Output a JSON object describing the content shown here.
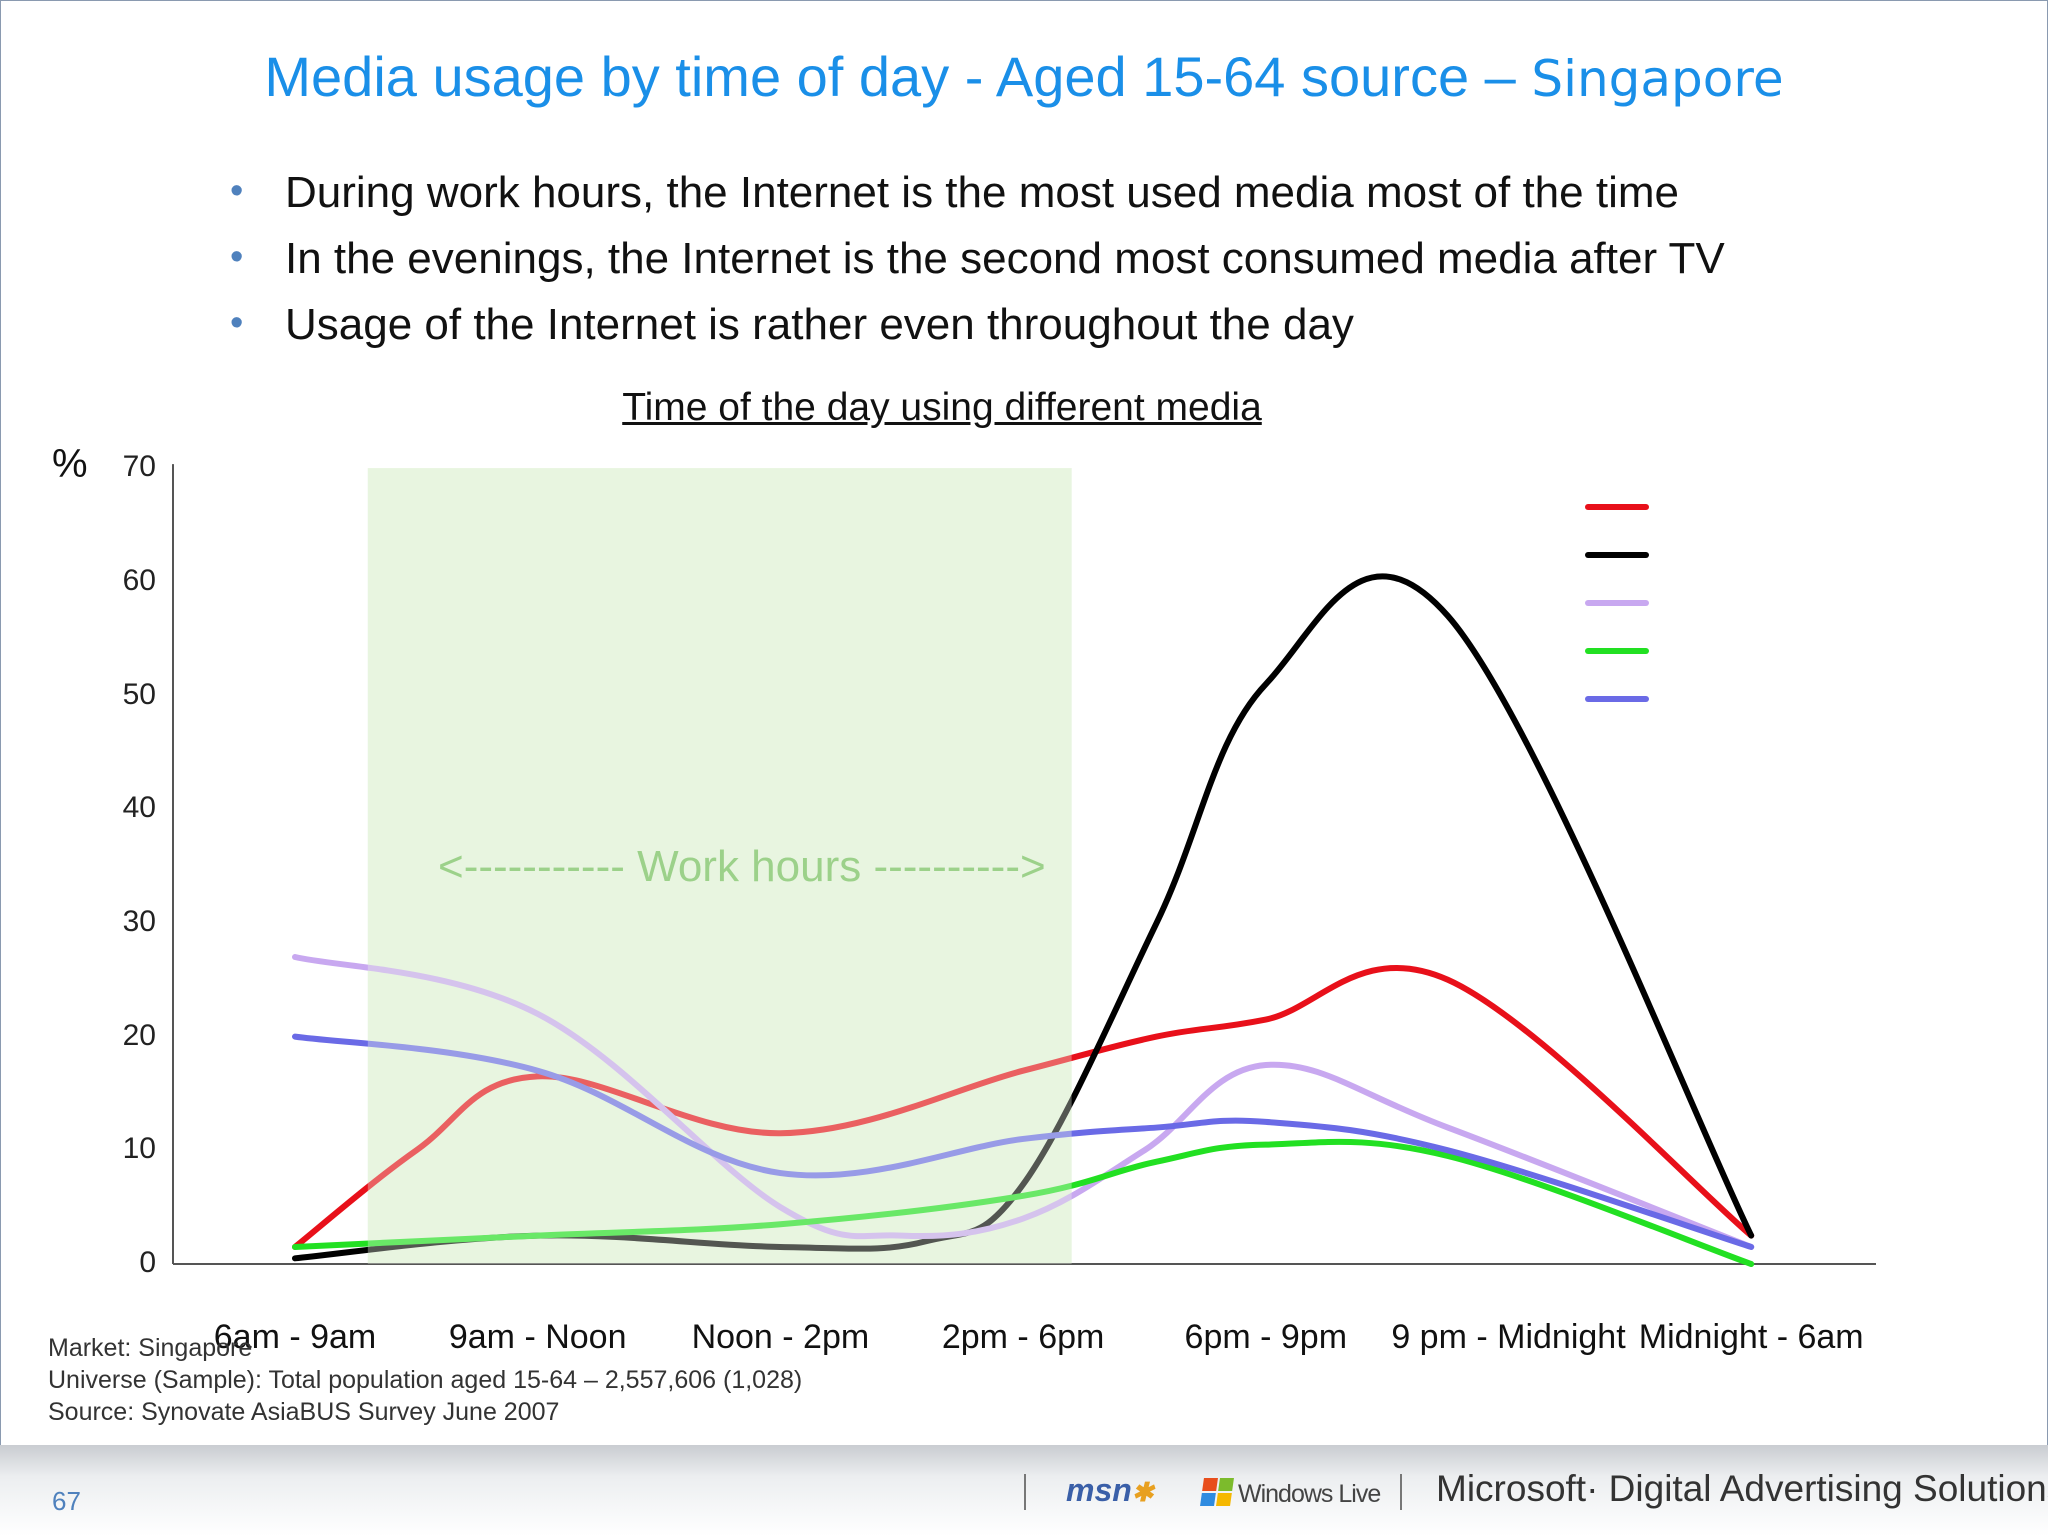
{
  "title": {
    "main": "Media usage by time of day - Aged 15-64 source – ",
    "sub": "Singapore"
  },
  "bullets": [
    "During work hours, the Internet is the most used media most of the time",
    "In the evenings, the Internet is the second most consumed media after TV",
    "Usage of the Internet is rather even throughout the day"
  ],
  "chart_data": {
    "type": "line",
    "title": "Time of the day using different media",
    "ylabel": "%",
    "ylim": [
      0,
      70
    ],
    "yticks": [
      0,
      10,
      20,
      30,
      40,
      50,
      60,
      70
    ],
    "categories": [
      "6am - 9am",
      "9am - Noon",
      "Noon - 2pm",
      "2pm - 6pm",
      "6pm - 9pm",
      "9 pm - Midnight",
      "Midnight - 6am"
    ],
    "highlight": {
      "label": "<----------- Work hours ---------->",
      "range": [
        "9am - Noon",
        "2pm - 6pm"
      ],
      "color": "#d4edc4"
    },
    "series": [
      {
        "color": "#e8101a",
        "values": [
          [
            0,
            1.5
          ],
          [
            0.5,
            10
          ],
          [
            1,
            16.5
          ],
          [
            2,
            11.5
          ],
          [
            3,
            17
          ],
          [
            3.55,
            20
          ],
          [
            4,
            21.5
          ],
          [
            4.75,
            25
          ],
          [
            6,
            2.5
          ]
        ]
      },
      {
        "color": "#000000",
        "values": [
          [
            0,
            0.5
          ],
          [
            1,
            2.5
          ],
          [
            2,
            1.5
          ],
          [
            2.6,
            2
          ],
          [
            3,
            7
          ],
          [
            3.55,
            30
          ],
          [
            4,
            51
          ],
          [
            4.75,
            57
          ],
          [
            6,
            2.5
          ]
        ]
      },
      {
        "color": "#c8a8f0",
        "values": [
          [
            0,
            27
          ],
          [
            1,
            22
          ],
          [
            2,
            5
          ],
          [
            2.5,
            2.5
          ],
          [
            3,
            4
          ],
          [
            3.5,
            10
          ],
          [
            4,
            17.5
          ],
          [
            4.75,
            12
          ],
          [
            6,
            1.5
          ]
        ]
      },
      {
        "color": "#22e022",
        "values": [
          [
            0,
            1.5
          ],
          [
            1,
            2.5
          ],
          [
            2,
            3.5
          ],
          [
            3,
            6
          ],
          [
            3.55,
            9
          ],
          [
            4,
            10.5
          ],
          [
            4.75,
            9.5
          ],
          [
            6,
            0
          ]
        ]
      },
      {
        "color": "#6a6ae6",
        "values": [
          [
            0,
            20
          ],
          [
            1,
            17
          ],
          [
            2,
            8
          ],
          [
            3,
            11
          ],
          [
            3.55,
            12
          ],
          [
            4,
            12.5
          ],
          [
            4.75,
            10
          ],
          [
            6,
            1.5
          ]
        ]
      }
    ],
    "legend": {
      "placement": "top-right"
    }
  },
  "notes": [
    "Market: Singapore",
    "Universe (Sample): Total population aged 15-64 – 2,557,606 (1,028)",
    "Source: Synovate AsiaBUS Survey June 2007"
  ],
  "footer": {
    "page_number": "67",
    "msn": "msn",
    "windows_live": "Windows Live",
    "brand": "Microsoft· Digital Advertising Solutions"
  }
}
